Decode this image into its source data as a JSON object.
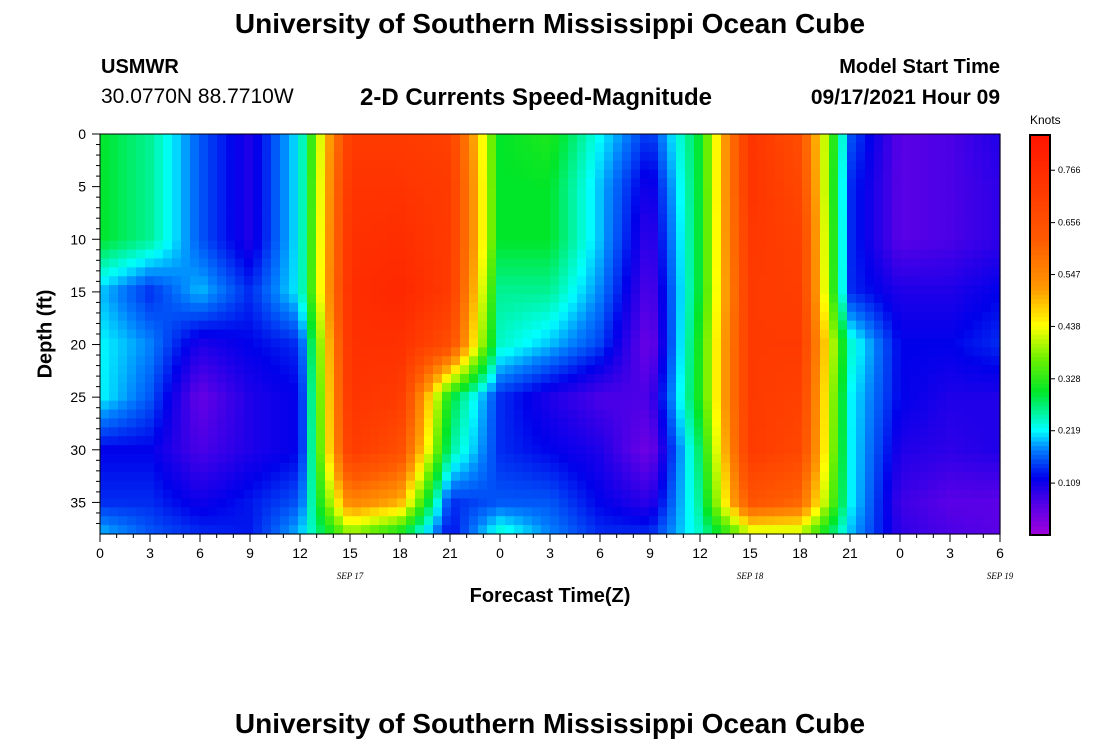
{
  "header": {
    "title": "University of Southern Mississippi Ocean Cube",
    "station": "USMWR",
    "coords": "30.0770N  88.7710W",
    "subtitle": "2-D Currents Speed-Magnitude",
    "model_start_label": "Model Start Time",
    "model_start_time": "09/17/2021 Hour 09"
  },
  "footer": {
    "title": "University of Southern Mississippi Ocean Cube"
  },
  "chart_data": {
    "type": "heatmap",
    "title": "2-D Currents Speed-Magnitude",
    "xlabel": "Forecast Time(Z)",
    "ylabel": "Depth (ft)",
    "x_hours": [
      0,
      3,
      6,
      9,
      12,
      15,
      18,
      21,
      24,
      27,
      30,
      33,
      36,
      39,
      42,
      45,
      48,
      51,
      54
    ],
    "x_tick_labels": [
      "0",
      "3",
      "6",
      "9",
      "12",
      "15",
      "18",
      "21",
      "0",
      "3",
      "6",
      "9",
      "12",
      "15",
      "18",
      "21",
      "0",
      "3",
      "6"
    ],
    "date_labels": [
      {
        "hour": 15,
        "text": "SEP 17"
      },
      {
        "hour": 39,
        "text": "SEP 18"
      },
      {
        "hour": 54,
        "text": "SEP 19"
      }
    ],
    "y_depths": [
      0,
      5,
      10,
      15,
      20,
      25,
      30,
      35,
      38
    ],
    "y_tick_labels": [
      "0",
      "5",
      "10",
      "15",
      "20",
      "25",
      "30",
      "35"
    ],
    "ylim": [
      38,
      0
    ],
    "xlim": [
      0,
      54
    ],
    "grid": false,
    "colorbar": {
      "unit": "Knots",
      "ticks": [
        "0.109",
        "0.219",
        "0.328",
        "0.438",
        "0.547",
        "0.656",
        "0.766"
      ],
      "range": [
        0,
        0.84
      ]
    },
    "speed_knots": [
      [
        0.3,
        0.26,
        0.16,
        0.1,
        0.22,
        0.72,
        0.72,
        0.7,
        0.3,
        0.32,
        0.22,
        0.14,
        0.3,
        0.74,
        0.66,
        0.16,
        0.06,
        0.07,
        0.1
      ],
      [
        0.3,
        0.26,
        0.16,
        0.1,
        0.22,
        0.74,
        0.74,
        0.72,
        0.3,
        0.3,
        0.2,
        0.1,
        0.3,
        0.74,
        0.68,
        0.14,
        0.06,
        0.07,
        0.09
      ],
      [
        0.3,
        0.26,
        0.16,
        0.1,
        0.22,
        0.75,
        0.76,
        0.72,
        0.3,
        0.3,
        0.2,
        0.08,
        0.3,
        0.73,
        0.7,
        0.14,
        0.06,
        0.07,
        0.09
      ],
      [
        0.2,
        0.14,
        0.2,
        0.14,
        0.22,
        0.76,
        0.78,
        0.72,
        0.26,
        0.26,
        0.18,
        0.06,
        0.3,
        0.72,
        0.71,
        0.14,
        0.1,
        0.1,
        0.12
      ],
      [
        0.22,
        0.18,
        0.1,
        0.12,
        0.14,
        0.75,
        0.75,
        0.66,
        0.24,
        0.2,
        0.15,
        0.04,
        0.32,
        0.72,
        0.72,
        0.24,
        0.12,
        0.12,
        0.14
      ],
      [
        0.22,
        0.16,
        0.05,
        0.1,
        0.12,
        0.74,
        0.72,
        0.3,
        0.14,
        0.1,
        0.07,
        0.07,
        0.32,
        0.72,
        0.7,
        0.22,
        0.12,
        0.1,
        0.1
      ],
      [
        0.12,
        0.12,
        0.07,
        0.1,
        0.12,
        0.72,
        0.66,
        0.26,
        0.14,
        0.12,
        0.1,
        0.04,
        0.28,
        0.72,
        0.68,
        0.22,
        0.1,
        0.09,
        0.1
      ],
      [
        0.14,
        0.14,
        0.11,
        0.13,
        0.16,
        0.55,
        0.5,
        0.14,
        0.16,
        0.16,
        0.12,
        0.09,
        0.26,
        0.64,
        0.6,
        0.22,
        0.08,
        0.06,
        0.06
      ],
      [
        0.2,
        0.16,
        0.14,
        0.13,
        0.2,
        0.38,
        0.3,
        0.12,
        0.24,
        0.18,
        0.14,
        0.14,
        0.24,
        0.4,
        0.4,
        0.2,
        0.09,
        0.07,
        0.06
      ]
    ]
  }
}
